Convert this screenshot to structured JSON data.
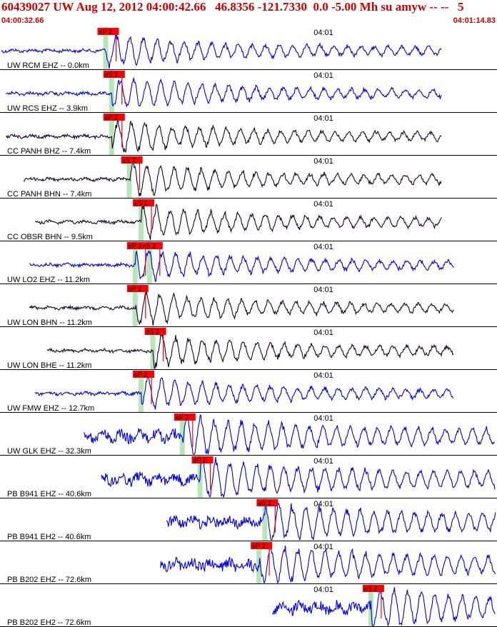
{
  "header": {
    "title": "60439027 UW Aug 12, 2012 04:00:42.66   46.8356 -121.7330  0.0 -5.00 Mh su amyw -- --   5",
    "time_start": "04:00:32.66",
    "time_end": "04:01:14.83"
  },
  "colors": {
    "header_text": "#d00000",
    "pick_box": "#ff0000",
    "pick_window": "#b8e6b8",
    "trace_blue": "#0000e0",
    "trace_dark": "#1a0030"
  },
  "chart_data": {
    "type": "seismogram",
    "time_tick_label": "04:01",
    "traces": [
      {
        "label": "UW RCM EHZ -- 0.0km",
        "picks": [
          "eP 2"
        ],
        "color": "blue",
        "onset_s": 9.0,
        "end_s": 37.5
      },
      {
        "label": "UW RCS EHZ -- 3.9km",
        "picks": [
          "eS 2"
        ],
        "color": "blue",
        "onset_s": 9.5,
        "end_s": 37.5
      },
      {
        "label": "CC PANH BHZ -- 7.4km",
        "picks": [
          "eP 2"
        ],
        "color": "dark",
        "onset_s": 9.5,
        "end_s": 37.5
      },
      {
        "label": "CC PANH BHN -- 7.4km",
        "picks": [
          "eS 2"
        ],
        "color": "dark",
        "onset_s": 11.0,
        "end_s": 37.5
      },
      {
        "label": "CC OBSR BHN -- 9.5km",
        "picks": [
          "eS 2"
        ],
        "color": "dark",
        "onset_s": 12.0,
        "end_s": 37.5
      },
      {
        "label": "UW LO2 EHZ -- 11.2km",
        "picks": [
          "eP 3",
          "eS 2"
        ],
        "color": "blue",
        "onset_s": 11.5,
        "end_s": 38.5
      },
      {
        "label": "UW LON BHN -- 11.2km",
        "picks": [
          "eP 2"
        ],
        "color": "dark",
        "onset_s": 11.5,
        "end_s": 38.5
      },
      {
        "label": "UW LON BHE -- 11.2km",
        "picks": [
          "eS 2"
        ],
        "color": "dark",
        "onset_s": 13.0,
        "end_s": 38.5
      },
      {
        "label": "UW FMW EHZ -- 12.7km",
        "picks": [
          "eP 2"
        ],
        "color": "blue",
        "onset_s": 12.0,
        "end_s": 38.5
      },
      {
        "label": "UW GLK EHZ -- 32.3km",
        "picks": [
          "eP 3"
        ],
        "color": "blue",
        "onset_s": 15.5,
        "end_s": 42.0
      },
      {
        "label": "PB B941 EHZ -- 40.6km",
        "picks": [
          "eP 2"
        ],
        "color": "blue",
        "onset_s": 17.0,
        "end_s": 43.5
      },
      {
        "label": "PB B941 EH2 -- 40.6km",
        "picks": [
          "eS 2"
        ],
        "color": "blue",
        "onset_s": 22.5,
        "end_s": 43.5
      },
      {
        "label": "PB B202 EHZ -- 72.6km",
        "picks": [
          "eP 2"
        ],
        "color": "blue",
        "onset_s": 22.0,
        "end_s": 49.0
      },
      {
        "label": "PB B202 EH2 -- 72.6km",
        "picks": [
          "eS 2"
        ],
        "color": "blue",
        "onset_s": 31.5,
        "end_s": 49.0
      }
    ]
  }
}
